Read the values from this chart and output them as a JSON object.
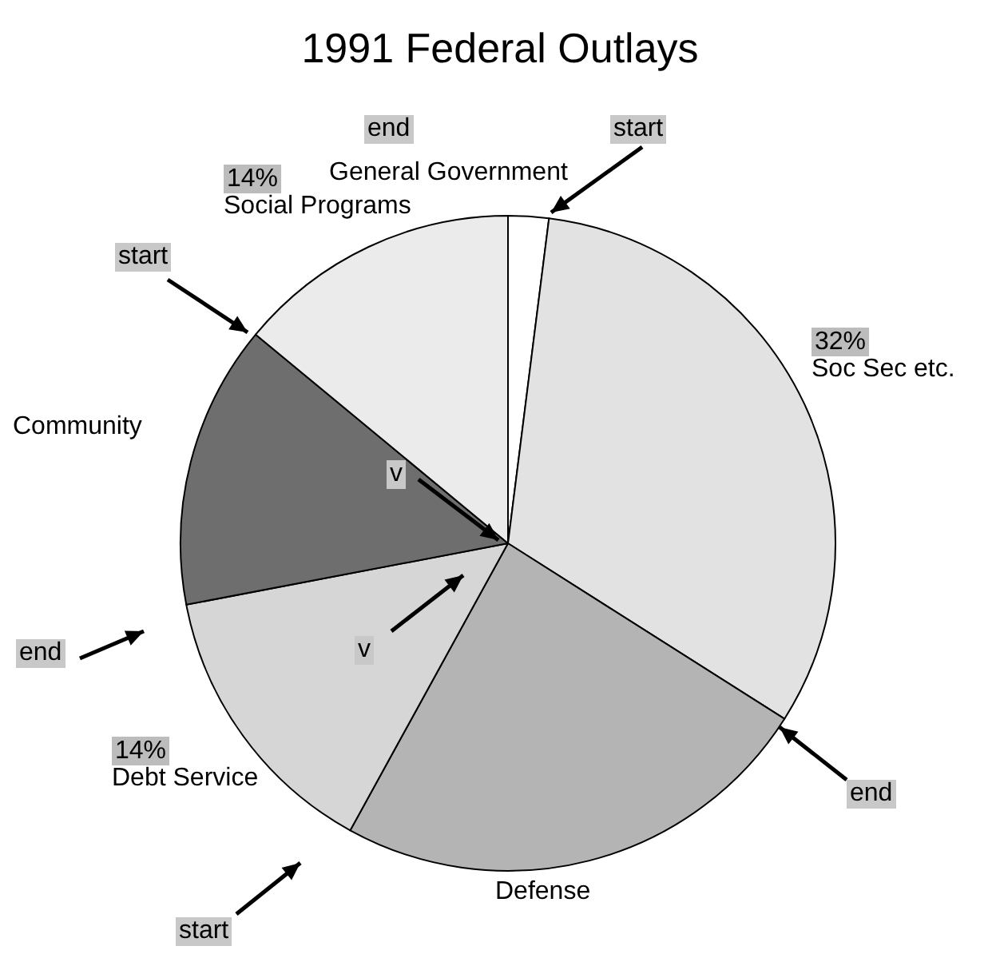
{
  "chart_data": {
    "type": "pie",
    "title": "1991 Federal Outlays",
    "categories": [
      "General Government",
      "Soc Sec etc.",
      "Defense",
      "Debt Service",
      "Community",
      "Social Programs"
    ],
    "values": [
      2,
      32,
      24,
      14,
      14,
      14
    ],
    "value_labels": [
      null,
      "32%",
      null,
      "14%",
      null,
      "14%"
    ],
    "colors": [
      "#ffffff",
      "#e2e2e2",
      "#b4b4b4",
      "#d6d6d6",
      "#6e6e6e",
      "#ebebeb"
    ],
    "annotations": [
      "end",
      "start",
      "start",
      "v",
      "v",
      "end",
      "end",
      "start"
    ],
    "legend": false
  }
}
